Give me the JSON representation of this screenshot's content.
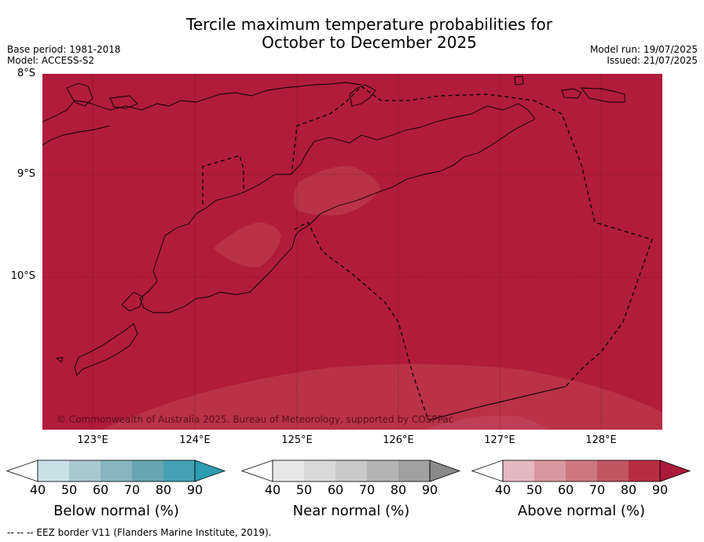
{
  "title_line1": "Tercile maximum temperature probabilities for",
  "title_line2": "October to December 2025",
  "base_period": "Base period: 1981-2018",
  "model": "Model: ACCESS-S2",
  "model_run": "Model run: 19/07/2025",
  "issued": "Issued: 21/07/2025",
  "lat_labels": [
    "8°S",
    "9°S",
    "10°S"
  ],
  "lon_labels": [
    "123°E",
    "124°E",
    "125°E",
    "126°E",
    "127°E",
    "128°E"
  ],
  "copyright": "© Commonwealth of Australia 2025. Bureau of Meteorology, supported by COSPPac",
  "colorbars": [
    {
      "title": "Below normal (%)",
      "ticks": [
        "40",
        "50",
        "60",
        "70",
        "80",
        "90"
      ],
      "colors": [
        "#ffffff",
        "#c9e1e6",
        "#a8c8cd",
        "#88b5bf",
        "#68a5b2",
        "#44a1b2",
        "#2c9cb0"
      ]
    },
    {
      "title": "Near normal (%)",
      "ticks": [
        "40",
        "50",
        "60",
        "70",
        "80",
        "90"
      ],
      "colors": [
        "#ffffff",
        "#e8e8e8",
        "#d9d9d9",
        "#c9c9c9",
        "#b4b4b4",
        "#a0a0a0",
        "#8a8a8a"
      ]
    },
    {
      "title": "Above normal (%)",
      "ticks": [
        "40",
        "50",
        "60",
        "70",
        "80",
        "90"
      ],
      "colors": [
        "#ffffff",
        "#e3b9bf",
        "#d9979f",
        "#cd7781",
        "#c25562",
        "#b82d44",
        "#ac1a39"
      ]
    }
  ],
  "footer": "--  --  -- EEZ border V11 (Flanders Marine Institute, 2019).",
  "map_fill_color": "#b01c3a"
}
